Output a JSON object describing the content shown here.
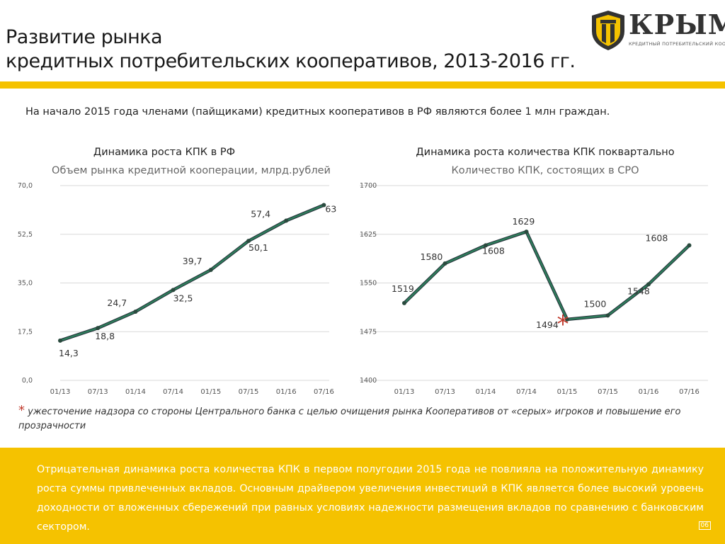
{
  "header": {
    "title_line1": "Развитие рынка",
    "title_line2": "кредитных потребительских кооперативов, 2013-2016 гг.",
    "logo_text": "КРЫМ",
    "logo_subtitle": "КРЕДИТНЫЙ ПОТРЕБИТЕЛЬСКИЙ КООПЕРАТИВ",
    "accent_color": "#f5c200"
  },
  "intro": "На начало 2015 года членами (пайщиками) кредитных кооперативов в РФ являются более 1 млн граждан.",
  "chart_data": [
    {
      "type": "line",
      "heading": "Динамика роста КПК в РФ",
      "title": "Объем рынка кредитной кооперации, млрд.рублей",
      "categories": [
        "01/13",
        "07/13",
        "01/14",
        "07/14",
        "01/15",
        "07/15",
        "01/16",
        "07/16"
      ],
      "x": [
        0,
        0.5,
        1,
        1.5,
        2,
        2.5,
        3,
        3.5
      ],
      "series": [
        {
          "values": [
            14.3,
            18.8,
            24.7,
            32.5,
            39.7,
            50.1,
            57.4,
            63.0
          ],
          "color": "#2e7d5b"
        }
      ],
      "labels": [
        "14,3",
        "18,8",
        "24,7",
        "32,5",
        "39,7",
        "50,1",
        "57,4",
        "63"
      ],
      "ylim": [
        0,
        70
      ],
      "yticks": [
        "0,0",
        "17,5",
        "35,0",
        "52,5",
        "70,0"
      ],
      "ytick_values": [
        0,
        17.5,
        35,
        52.5,
        70
      ],
      "grid": true
    },
    {
      "type": "line",
      "heading": "Динамика роста количества КПК поквартально",
      "title": "Количество КПК, состоящих в СРО",
      "categories": [
        "01/13",
        "07/13",
        "01/14",
        "07/14",
        "01/15",
        "07/15",
        "01/16",
        "07/16"
      ],
      "x": [
        0,
        0.5,
        1,
        1.5,
        2,
        2.5,
        3,
        3.5
      ],
      "series": [
        {
          "values": [
            1519,
            1580,
            1608,
            1629,
            1494,
            1500,
            1548,
            1608
          ],
          "color": "#2e7d5b"
        }
      ],
      "labels": [
        "1519",
        "1580",
        "1608",
        "1629",
        "1494",
        "1500",
        "1548",
        "1608"
      ],
      "ylim": [
        1400,
        1700
      ],
      "yticks": [
        "1400",
        "1475",
        "1550",
        "1625",
        "1700"
      ],
      "ytick_values": [
        1400,
        1475,
        1550,
        1625,
        1700
      ],
      "grid": true,
      "annotation": "*"
    }
  ],
  "footnote": {
    "star": "*",
    "text": "ужесточение надзора со стороны Центрального банка с целью очищения рынка Кооперативов от «серых» игроков и повышение его прозрачности"
  },
  "bottom_text": "Отрицательная динамика роста количества КПК в первом полугодии 2015 года не повлияла на положительную динамику роста суммы привлеченных вкладов. Основным драйвером увеличения инвестиций в КПК является более высокий уровень доходности от вложенных сбережений при равных условиях надежности размещения вкладов по сравнению с банковским сектором.",
  "page_number": "06"
}
